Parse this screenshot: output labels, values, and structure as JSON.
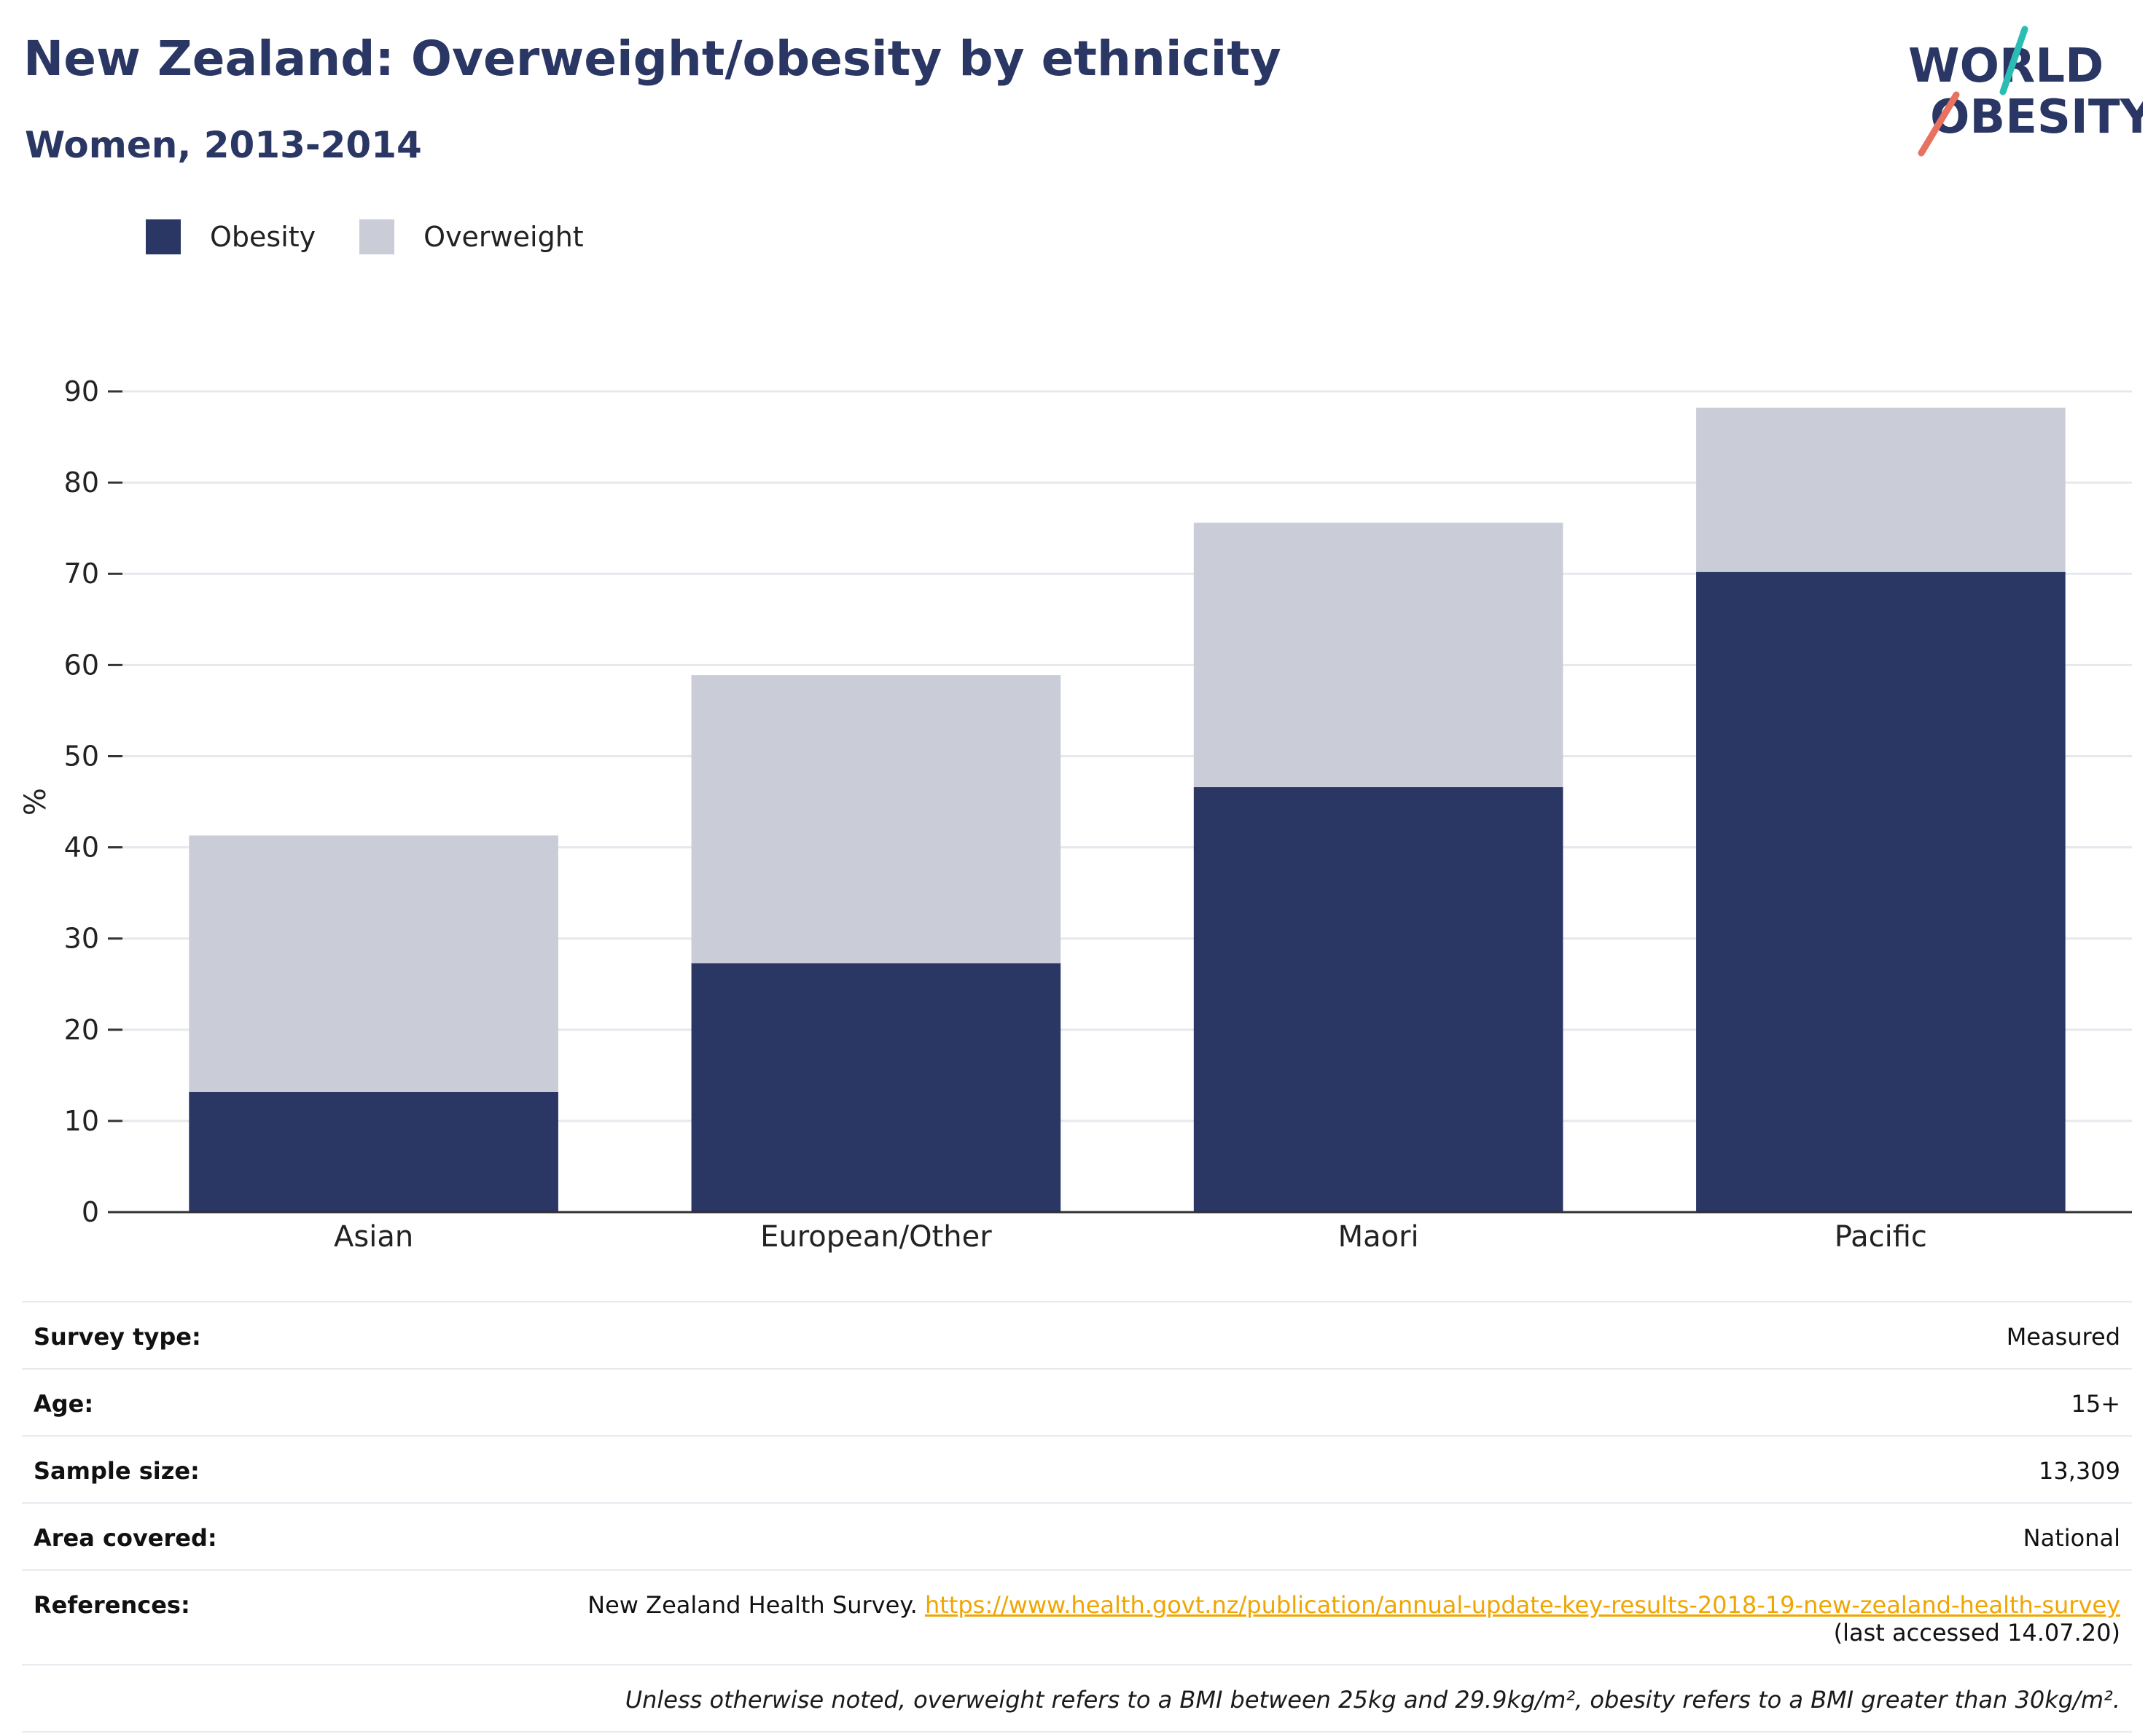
{
  "header": {
    "title": "New Zealand: Overweight/obesity by ethnicity",
    "subtitle": "Women, 2013-2014",
    "logo_line1": "WORLD",
    "logo_line2": "OBESITY"
  },
  "colors": {
    "obesity": "#2a3663",
    "overweight": "#cacdd8",
    "title": "#2a3663",
    "link": "#f0a500",
    "logo_teal": "#2bbdb4",
    "logo_coral": "#e8715f"
  },
  "chart_data": {
    "type": "bar",
    "stacked": true,
    "categories": [
      "Asian",
      "European/Other",
      "Maori",
      "Pacific"
    ],
    "series": [
      {
        "name": "Obesity",
        "values": [
          13.2,
          27.3,
          46.6,
          70.2
        ]
      },
      {
        "name": "Overweight",
        "values": [
          28.1,
          31.6,
          29.0,
          18.0
        ]
      }
    ],
    "ylabel": "%",
    "xlabel": "",
    "ylim": [
      0,
      90
    ],
    "yticks": [
      0,
      10,
      20,
      30,
      40,
      50,
      60,
      70,
      80,
      90
    ],
    "grid": true,
    "legend": "top-left"
  },
  "info": {
    "survey_type_label": "Survey type:",
    "survey_type_value": "Measured",
    "age_label": "Age:",
    "age_value": "15+",
    "sample_size_label": "Sample size:",
    "sample_size_value": "13,309",
    "area_label": "Area covered:",
    "area_value": "National",
    "references_label": "References:",
    "references_text": "New Zealand Health Survey.",
    "references_link": "https://www.health.govt.nz/publication/annual-update-key-results-2018-19-new-zealand-health-survey",
    "references_accessed": "(last accessed 14.07.20)",
    "note": "Unless otherwise noted, overweight refers to a BMI between 25kg and 29.9kg/m², obesity refers to a BMI greater than 30kg/m²."
  }
}
